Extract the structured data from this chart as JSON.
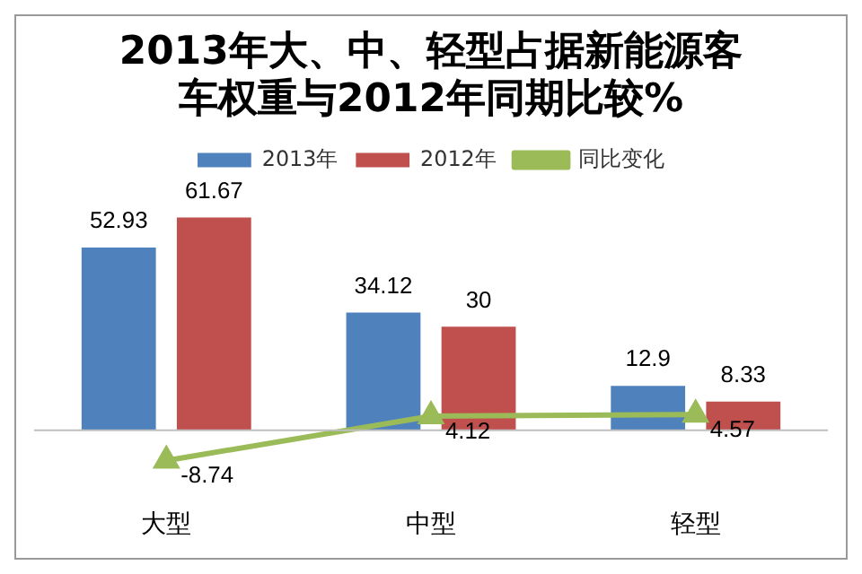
{
  "chart_data": {
    "type": "bar",
    "title": "2013年大、中、轻型占据新能源客车权重与2012年同期比较%",
    "categories": [
      "大型",
      "中型",
      "轻型"
    ],
    "series": [
      {
        "name": "2013年",
        "color": "#4f81bd",
        "values": [
          52.93,
          34.12,
          12.9
        ]
      },
      {
        "name": "2012年",
        "color": "#c0504d",
        "values": [
          61.67,
          30,
          8.33
        ]
      },
      {
        "name": "同比变化",
        "type": "line",
        "color": "#9bbb59",
        "marker": "triangle",
        "values": [
          -8.74,
          4.12,
          4.57
        ]
      }
    ],
    "data_labels": true,
    "legend": "top",
    "grid": false
  }
}
